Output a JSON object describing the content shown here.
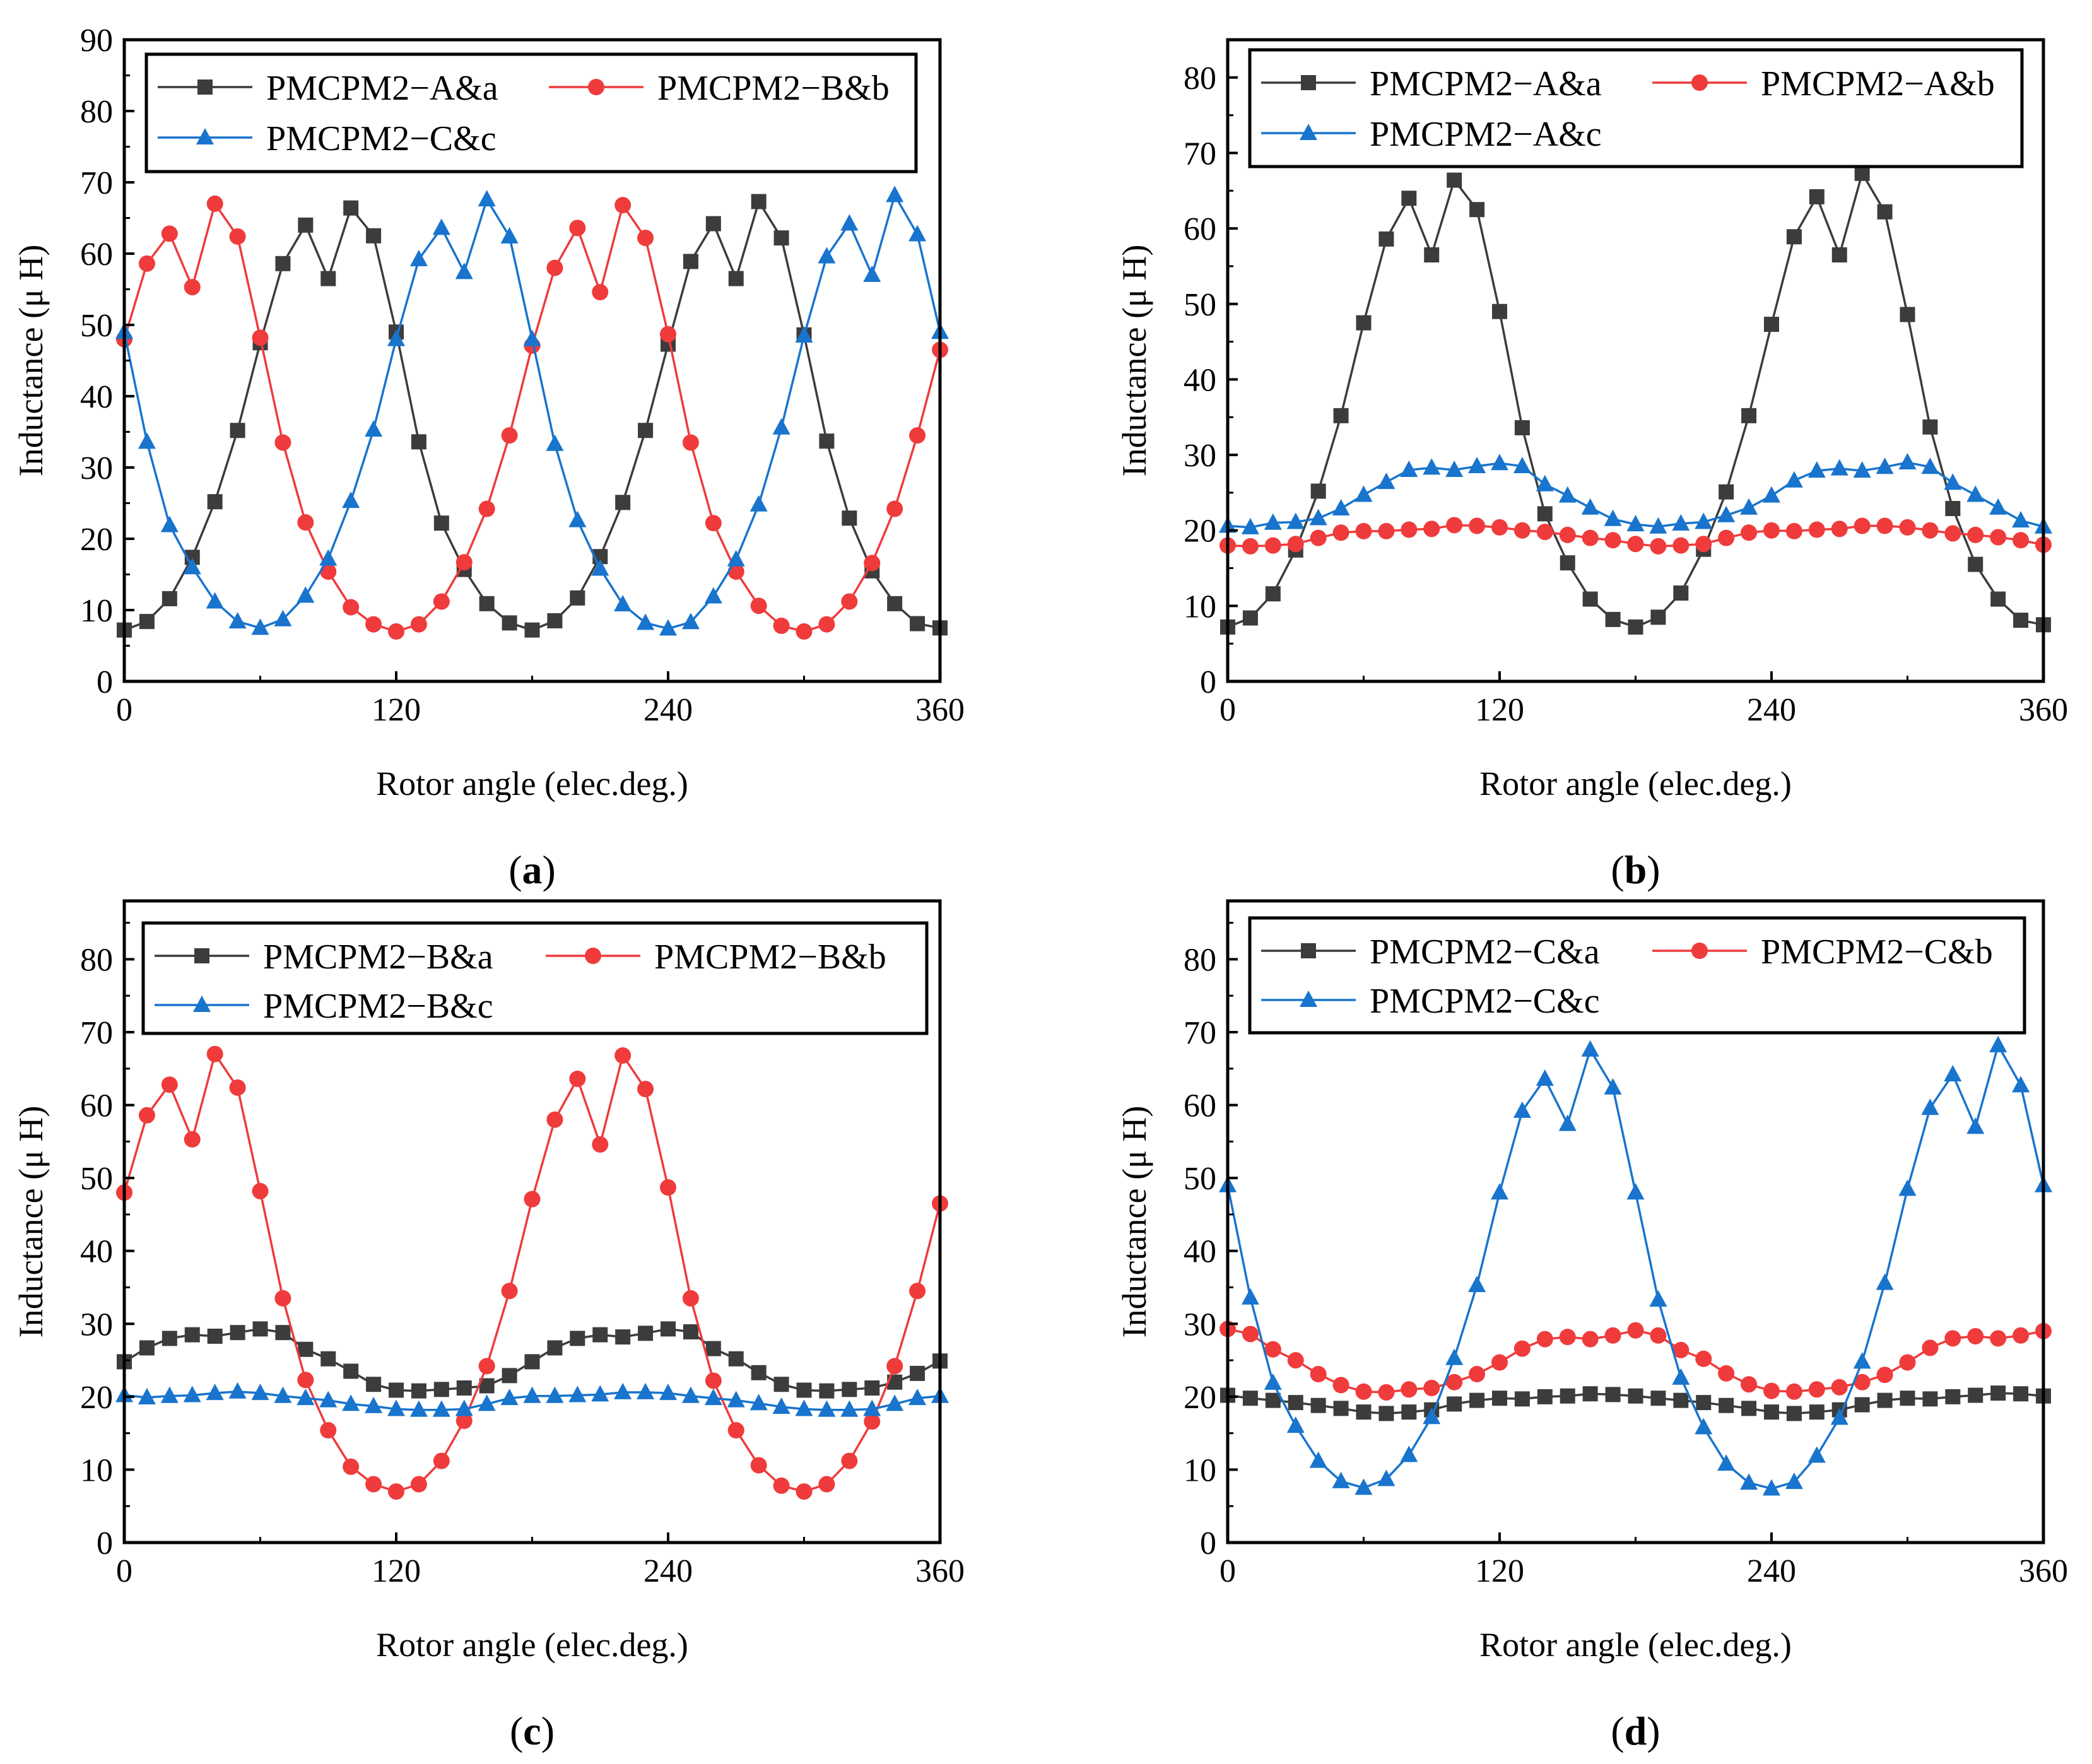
{
  "figure": {
    "panel_label_format": [
      "(",
      ")"
    ]
  },
  "chart_data": [
    {
      "type": "line",
      "panel_label": "a",
      "xlabel": "Rotor angle (elec.deg.)",
      "ylabel": "Inductance (μ H)",
      "xlim": [
        0,
        360
      ],
      "ylim": [
        0,
        90
      ],
      "xticks": [
        0,
        120,
        240,
        360
      ],
      "yticks": [
        0,
        10,
        20,
        30,
        40,
        50,
        60,
        70,
        80,
        90
      ],
      "legend_position": "top",
      "x": [
        0,
        10,
        20,
        30,
        40,
        50,
        60,
        70,
        80,
        90,
        100,
        110,
        120,
        130,
        140,
        150,
        160,
        170,
        180,
        190,
        200,
        210,
        220,
        230,
        240,
        250,
        260,
        270,
        280,
        290,
        300,
        310,
        320,
        330,
        340,
        350,
        360
      ],
      "series": [
        {
          "name": "PMCPM2−A&a",
          "color": "#3c3c3c",
          "marker": "square",
          "values": [
            7.2,
            8.4,
            11.6,
            17.4,
            25.2,
            35.2,
            47.5,
            58.6,
            64.0,
            56.5,
            66.4,
            62.5,
            49.0,
            33.6,
            22.2,
            15.7,
            10.9,
            8.2,
            7.2,
            8.5,
            11.7,
            17.5,
            25.1,
            35.2,
            47.3,
            58.9,
            64.2,
            56.5,
            67.3,
            62.2,
            48.6,
            33.7,
            22.9,
            15.5,
            10.9,
            8.1,
            7.5
          ]
        },
        {
          "name": "PMCPM2−B&b",
          "color": "#ef3b3b",
          "marker": "circle",
          "values": [
            48.0,
            58.6,
            62.8,
            55.3,
            67.0,
            62.4,
            48.2,
            33.5,
            22.3,
            15.4,
            10.4,
            8.0,
            7.0,
            8.0,
            11.2,
            16.7,
            24.2,
            34.5,
            47.1,
            58.0,
            63.6,
            54.6,
            66.8,
            62.2,
            48.7,
            33.5,
            22.2,
            15.4,
            10.6,
            7.8,
            7.0,
            8.0,
            11.2,
            16.6,
            24.2,
            34.5,
            46.5
          ]
        },
        {
          "name": "PMCPM2−C&c",
          "color": "#1874cd",
          "marker": "triangle",
          "values": [
            49.0,
            33.6,
            21.9,
            16.0,
            11.2,
            8.4,
            7.5,
            8.7,
            12.0,
            17.2,
            25.3,
            35.3,
            48.0,
            59.2,
            63.6,
            57.4,
            67.6,
            62.4,
            48.0,
            33.3,
            22.6,
            15.8,
            10.8,
            8.2,
            7.4,
            8.3,
            11.9,
            17.1,
            24.8,
            35.6,
            48.5,
            59.6,
            64.2,
            57.0,
            68.2,
            62.7,
            49.0
          ]
        }
      ]
    },
    {
      "type": "line",
      "panel_label": "b",
      "xlabel": "Rotor angle (elec.deg.)",
      "ylabel": "Inductance (μ H)",
      "xlim": [
        0,
        360
      ],
      "ylim": [
        0,
        85
      ],
      "xticks": [
        0,
        120,
        240,
        360
      ],
      "yticks": [
        0,
        10,
        20,
        30,
        40,
        50,
        60,
        70,
        80
      ],
      "legend_position": "top",
      "x": [
        0,
        10,
        20,
        30,
        40,
        50,
        60,
        70,
        80,
        90,
        100,
        110,
        120,
        130,
        140,
        150,
        160,
        170,
        180,
        190,
        200,
        210,
        220,
        230,
        240,
        250,
        260,
        270,
        280,
        290,
        300,
        310,
        320,
        330,
        340,
        350,
        360
      ],
      "series": [
        {
          "name": "PMCPM2−A&a",
          "color": "#3c3c3c",
          "marker": "square",
          "values": [
            7.2,
            8.4,
            11.6,
            17.4,
            25.2,
            35.2,
            47.5,
            58.6,
            64.0,
            56.5,
            66.4,
            62.5,
            49.0,
            33.6,
            22.2,
            15.7,
            10.9,
            8.2,
            7.2,
            8.5,
            11.7,
            17.5,
            25.1,
            35.2,
            47.3,
            58.9,
            64.2,
            56.5,
            67.3,
            62.2,
            48.6,
            33.7,
            22.9,
            15.5,
            10.9,
            8.1,
            7.5
          ]
        },
        {
          "name": "PMCPM2−A&b",
          "color": "#ef3b3b",
          "marker": "circle",
          "values": [
            18.0,
            17.9,
            18.0,
            18.2,
            19.0,
            19.7,
            19.9,
            19.9,
            20.1,
            20.2,
            20.7,
            20.6,
            20.4,
            20.0,
            19.8,
            19.4,
            19.0,
            18.7,
            18.2,
            17.9,
            18.0,
            18.2,
            19.0,
            19.7,
            20.0,
            19.9,
            20.1,
            20.2,
            20.6,
            20.6,
            20.4,
            20.0,
            19.6,
            19.4,
            19.1,
            18.7,
            18.1
          ]
        },
        {
          "name": "PMCPM2−A&c",
          "color": "#1874cd",
          "marker": "triangle",
          "values": [
            20.6,
            20.4,
            21.0,
            21.1,
            21.6,
            22.9,
            24.7,
            26.4,
            28.0,
            28.3,
            28.0,
            28.5,
            28.9,
            28.5,
            26.1,
            24.6,
            23.0,
            21.5,
            20.8,
            20.5,
            20.9,
            21.1,
            22.0,
            23.0,
            24.6,
            26.6,
            27.9,
            28.2,
            27.9,
            28.4,
            29.0,
            28.4,
            26.3,
            24.7,
            23.0,
            21.3,
            20.5
          ]
        }
      ]
    },
    {
      "type": "line",
      "panel_label": "c",
      "xlabel": "Rotor angle (elec.deg.)",
      "ylabel": "Inductance (μ H)",
      "xlim": [
        0,
        360
      ],
      "ylim": [
        0,
        88
      ],
      "xticks": [
        0,
        120,
        240,
        360
      ],
      "yticks": [
        0,
        10,
        20,
        30,
        40,
        50,
        60,
        70,
        80
      ],
      "legend_position": "top",
      "x": [
        0,
        10,
        20,
        30,
        40,
        50,
        60,
        70,
        80,
        90,
        100,
        110,
        120,
        130,
        140,
        150,
        160,
        170,
        180,
        190,
        200,
        210,
        220,
        230,
        240,
        250,
        260,
        270,
        280,
        290,
        300,
        310,
        320,
        330,
        340,
        350,
        360
      ],
      "series": [
        {
          "name": "PMCPM2−B&a",
          "color": "#3c3c3c",
          "marker": "square",
          "values": [
            24.8,
            26.7,
            28.0,
            28.5,
            28.3,
            28.8,
            29.3,
            28.8,
            26.5,
            25.2,
            23.5,
            21.7,
            20.9,
            20.8,
            21.0,
            21.2,
            21.5,
            22.9,
            24.8,
            26.7,
            28.0,
            28.5,
            28.2,
            28.7,
            29.3,
            28.9,
            26.6,
            25.2,
            23.3,
            21.7,
            20.9,
            20.8,
            21.0,
            21.2,
            22.0,
            23.2,
            24.9
          ]
        },
        {
          "name": "PMCPM2−B&b",
          "color": "#ef3b3b",
          "marker": "circle",
          "values": [
            48.0,
            58.6,
            62.8,
            55.3,
            67.0,
            62.4,
            48.2,
            33.5,
            22.3,
            15.4,
            10.4,
            8.0,
            7.0,
            8.0,
            11.2,
            16.7,
            24.2,
            34.5,
            47.1,
            58.0,
            63.6,
            54.6,
            66.8,
            62.2,
            48.7,
            33.5,
            22.2,
            15.4,
            10.6,
            7.8,
            7.0,
            8.0,
            11.2,
            16.6,
            24.2,
            34.5,
            46.5
          ]
        },
        {
          "name": "PMCPM2−B&c",
          "color": "#1874cd",
          "marker": "triangle",
          "values": [
            20.2,
            19.9,
            20.1,
            20.2,
            20.5,
            20.7,
            20.5,
            20.1,
            19.8,
            19.5,
            19.0,
            18.7,
            18.3,
            18.2,
            18.2,
            18.3,
            19.0,
            19.8,
            20.1,
            20.1,
            20.2,
            20.3,
            20.6,
            20.6,
            20.5,
            20.1,
            19.8,
            19.5,
            19.1,
            18.6,
            18.3,
            18.2,
            18.2,
            18.3,
            19.0,
            19.8,
            20.1
          ]
        }
      ]
    },
    {
      "type": "line",
      "panel_label": "d",
      "xlabel": "Rotor angle (elec.deg.)",
      "ylabel": "Inductance (μ H)",
      "xlim": [
        0,
        360
      ],
      "ylim": [
        0,
        88
      ],
      "xticks": [
        0,
        120,
        240,
        360
      ],
      "yticks": [
        0,
        10,
        20,
        30,
        40,
        50,
        60,
        70,
        80
      ],
      "legend_position": "top",
      "x": [
        0,
        10,
        20,
        30,
        40,
        50,
        60,
        70,
        80,
        90,
        100,
        110,
        120,
        130,
        140,
        150,
        160,
        170,
        180,
        190,
        200,
        210,
        220,
        230,
        240,
        250,
        260,
        270,
        280,
        290,
        300,
        310,
        320,
        330,
        340,
        350,
        360
      ],
      "series": [
        {
          "name": "PMCPM2−C&a",
          "color": "#3c3c3c",
          "marker": "square",
          "values": [
            20.2,
            19.8,
            19.5,
            19.2,
            18.8,
            18.4,
            17.9,
            17.7,
            17.9,
            18.2,
            19.0,
            19.5,
            19.8,
            19.7,
            20.0,
            20.1,
            20.4,
            20.3,
            20.1,
            19.8,
            19.5,
            19.2,
            18.8,
            18.4,
            17.9,
            17.7,
            17.9,
            18.2,
            18.9,
            19.5,
            19.8,
            19.7,
            20.0,
            20.2,
            20.5,
            20.4,
            20.1
          ]
        },
        {
          "name": "PMCPM2−C&b",
          "color": "#ef3b3b",
          "marker": "circle",
          "values": [
            29.3,
            28.6,
            26.5,
            25.0,
            23.1,
            21.6,
            20.7,
            20.6,
            21.0,
            21.2,
            22.0,
            23.1,
            24.7,
            26.6,
            27.9,
            28.2,
            27.9,
            28.4,
            29.1,
            28.4,
            26.4,
            25.2,
            23.2,
            21.7,
            20.8,
            20.7,
            21.0,
            21.3,
            22.0,
            23.0,
            24.7,
            26.7,
            28.0,
            28.3,
            28.0,
            28.4,
            29.0
          ]
        },
        {
          "name": "PMCPM2−C&c",
          "color": "#1874cd",
          "marker": "triangle",
          "values": [
            49.0,
            33.6,
            21.9,
            16.0,
            11.2,
            8.4,
            7.5,
            8.7,
            12.0,
            17.2,
            25.3,
            35.3,
            48.0,
            59.2,
            63.6,
            57.4,
            67.6,
            62.4,
            48.0,
            33.3,
            22.6,
            15.8,
            10.8,
            8.2,
            7.4,
            8.3,
            11.9,
            17.1,
            24.8,
            35.6,
            48.5,
            59.6,
            64.2,
            57.0,
            68.2,
            62.7,
            49.0
          ]
        }
      ]
    }
  ]
}
